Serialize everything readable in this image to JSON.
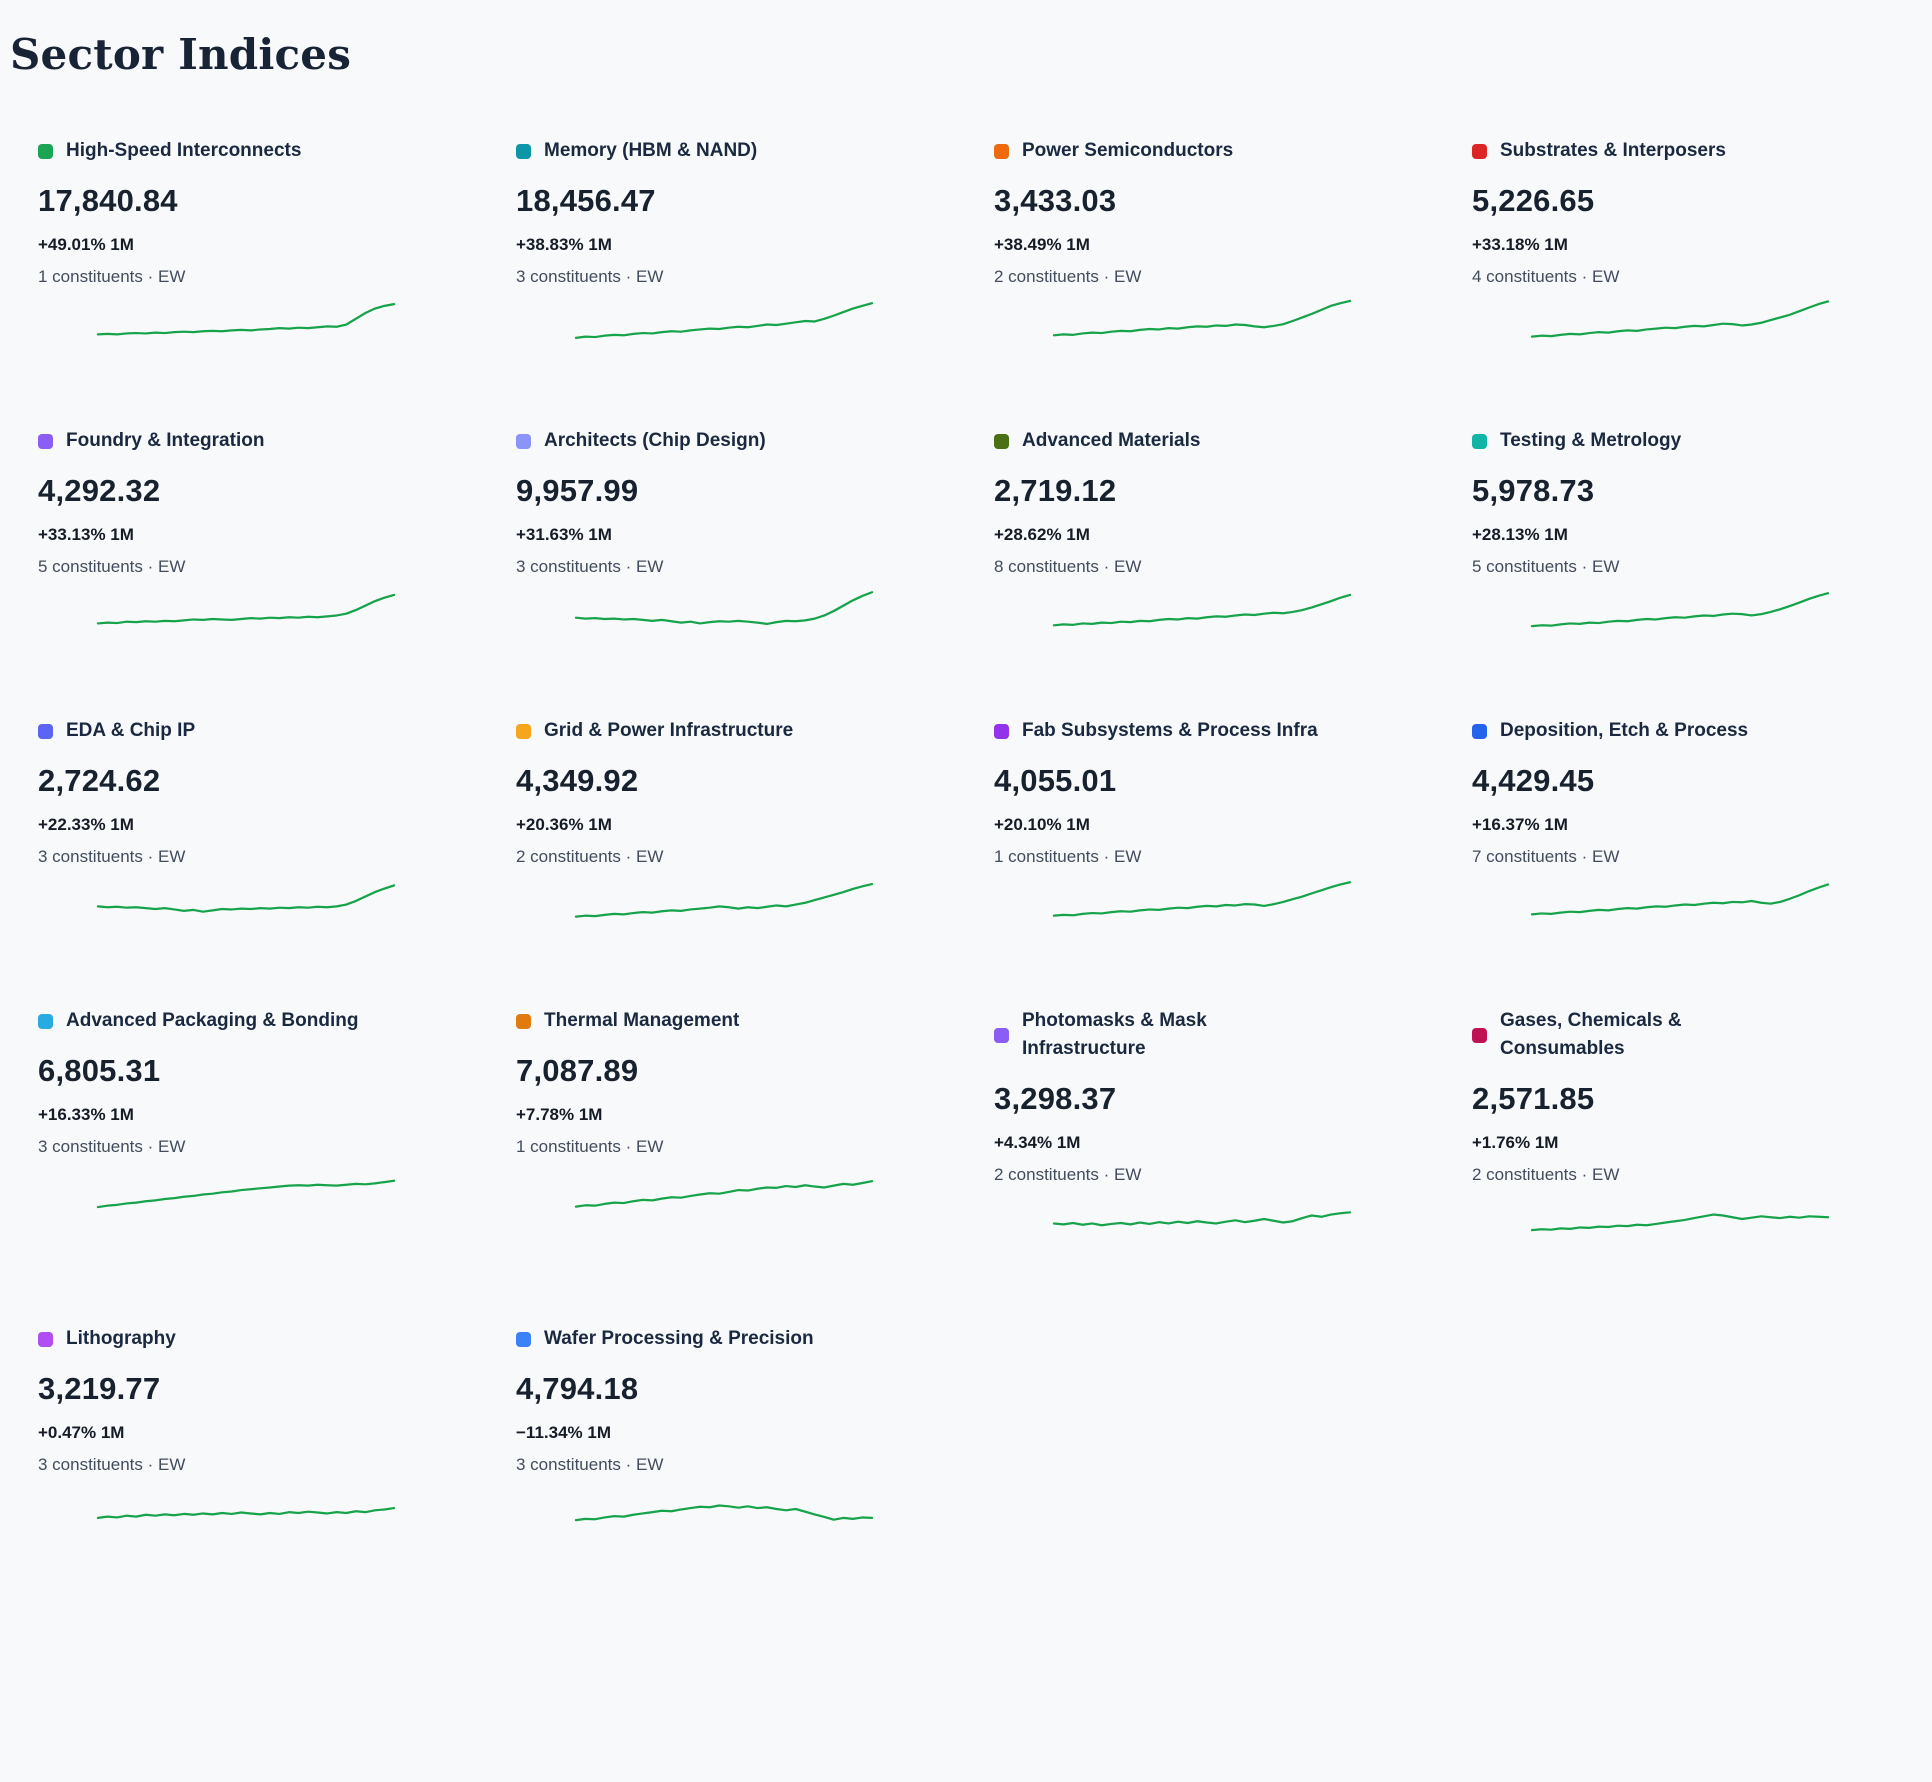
{
  "page": {
    "title": "Sector Indices",
    "background_color": "#f8f9fa",
    "sparkline_color": "#16a34a"
  },
  "cards": [
    {
      "name": "High-Speed Interconnects",
      "dot_color": "#1ba553",
      "value": "17,840.84",
      "change": "+49.01% 1M",
      "constituents": "1 constituents · EW",
      "sparkline": [
        20,
        21,
        20,
        22,
        23,
        22,
        24,
        23,
        25,
        26,
        25,
        27,
        28,
        27,
        29,
        30,
        29,
        31,
        32,
        34,
        33,
        35,
        34,
        36,
        38,
        37,
        42,
        55,
        68,
        78,
        84,
        88
      ]
    },
    {
      "name": "Memory (HBM & NAND)",
      "dot_color": "#0d95a8",
      "value": "18,456.47",
      "change": "+38.83% 1M",
      "constituents": "3 constituents · EW",
      "sparkline": [
        12,
        15,
        14,
        17,
        19,
        18,
        21,
        23,
        22,
        25,
        27,
        26,
        29,
        31,
        33,
        32,
        35,
        37,
        36,
        39,
        42,
        41,
        44,
        47,
        50,
        49,
        55,
        62,
        70,
        78,
        84,
        90
      ]
    },
    {
      "name": "Power Semiconductors",
      "dot_color": "#ee6a0e",
      "value": "3,433.03",
      "change": "+38.49% 1M",
      "constituents": "2 constituents · EW",
      "sparkline": [
        18,
        20,
        19,
        22,
        24,
        23,
        26,
        28,
        27,
        30,
        32,
        31,
        34,
        33,
        36,
        38,
        37,
        40,
        39,
        42,
        41,
        38,
        36,
        39,
        43,
        50,
        58,
        66,
        75,
        84,
        90,
        95
      ]
    },
    {
      "name": "Substrates & Interposers",
      "dot_color": "#dc2626",
      "value": "5,226.65",
      "change": "+33.18% 1M",
      "constituents": "4 constituents · EW",
      "sparkline": [
        15,
        17,
        16,
        19,
        21,
        20,
        23,
        25,
        24,
        27,
        29,
        28,
        31,
        33,
        35,
        34,
        37,
        39,
        38,
        41,
        44,
        43,
        40,
        42,
        46,
        52,
        58,
        64,
        72,
        80,
        88,
        94
      ]
    },
    {
      "name": "Foundry & Integration",
      "dot_color": "#8b5cf6",
      "value": "4,292.32",
      "change": "+33.13% 1M",
      "constituents": "5 constituents · EW",
      "sparkline": [
        22,
        24,
        23,
        26,
        25,
        27,
        26,
        28,
        27,
        29,
        31,
        30,
        32,
        31,
        30,
        32,
        34,
        33,
        35,
        34,
        36,
        35,
        37,
        36,
        38,
        40,
        44,
        52,
        62,
        72,
        80,
        86
      ]
    },
    {
      "name": "Architects (Chip Design)",
      "dot_color": "#8b94f8",
      "value": "9,957.99",
      "change": "+31.63% 1M",
      "constituents": "3 constituents · EW",
      "sparkline": [
        35,
        33,
        34,
        32,
        33,
        31,
        32,
        30,
        28,
        30,
        27,
        24,
        26,
        22,
        25,
        27,
        26,
        28,
        26,
        24,
        21,
        25,
        28,
        27,
        29,
        33,
        40,
        50,
        62,
        74,
        84,
        92
      ]
    },
    {
      "name": "Advanced Materials",
      "dot_color": "#4a7113",
      "value": "2,719.12",
      "change": "+28.62% 1M",
      "constituents": "8 constituents · EW",
      "sparkline": [
        18,
        20,
        19,
        22,
        21,
        24,
        23,
        26,
        25,
        28,
        27,
        30,
        32,
        31,
        34,
        33,
        36,
        38,
        37,
        40,
        42,
        41,
        44,
        46,
        45,
        48,
        52,
        58,
        65,
        72,
        80,
        86
      ]
    },
    {
      "name": "Testing & Metrology",
      "dot_color": "#12b5a5",
      "value": "5,978.73",
      "change": "+28.13% 1M",
      "constituents": "5 constituents · EW",
      "sparkline": [
        16,
        18,
        17,
        20,
        22,
        21,
        24,
        23,
        26,
        28,
        27,
        30,
        32,
        31,
        34,
        36,
        35,
        38,
        40,
        39,
        42,
        44,
        43,
        40,
        43,
        48,
        54,
        61,
        69,
        77,
        84,
        90
      ]
    },
    {
      "name": "EDA & Chip IP",
      "dot_color": "#5b64f4",
      "value": "2,724.62",
      "change": "+22.33% 1M",
      "constituents": "3 constituents · EW",
      "sparkline": [
        38,
        36,
        37,
        35,
        36,
        34,
        32,
        34,
        31,
        28,
        30,
        26,
        29,
        32,
        31,
        33,
        32,
        34,
        33,
        35,
        34,
        36,
        35,
        37,
        36,
        38,
        42,
        50,
        60,
        70,
        78,
        85
      ]
    },
    {
      "name": "Grid & Power Infrastructure",
      "dot_color": "#f5a61c",
      "value": "4,349.92",
      "change": "+20.36% 1M",
      "constituents": "2 constituents · EW",
      "sparkline": [
        15,
        17,
        16,
        19,
        21,
        20,
        23,
        25,
        24,
        27,
        29,
        28,
        31,
        33,
        35,
        38,
        36,
        33,
        36,
        34,
        37,
        40,
        38,
        42,
        46,
        52,
        58,
        64,
        70,
        77,
        83,
        88
      ]
    },
    {
      "name": "Fab Subsystems & Process Infra",
      "dot_color": "#9333ea",
      "value": "4,055.01",
      "change": "+20.10% 1M",
      "constituents": "1 constituents · EW",
      "sparkline": [
        17,
        19,
        18,
        21,
        23,
        22,
        25,
        27,
        26,
        29,
        31,
        30,
        33,
        35,
        34,
        37,
        39,
        38,
        41,
        40,
        43,
        42,
        39,
        43,
        48,
        54,
        60,
        67,
        74,
        81,
        87,
        92
      ]
    },
    {
      "name": "Deposition, Etch & Process",
      "dot_color": "#2563eb",
      "value": "4,429.45",
      "change": "+16.37% 1M",
      "constituents": "7 constituents · EW",
      "sparkline": [
        20,
        22,
        21,
        24,
        26,
        25,
        28,
        30,
        29,
        32,
        34,
        33,
        36,
        38,
        37,
        40,
        42,
        41,
        44,
        46,
        45,
        48,
        47,
        50,
        46,
        44,
        48,
        55,
        63,
        72,
        80,
        87
      ]
    },
    {
      "name": "Advanced Packaging & Bonding",
      "dot_color": "#29aae3",
      "value": "6,805.31",
      "change": "+16.33% 1M",
      "constituents": "3 constituents · EW",
      "sparkline": [
        14,
        17,
        19,
        22,
        24,
        27,
        29,
        32,
        34,
        37,
        39,
        42,
        44,
        47,
        49,
        52,
        54,
        56,
        58,
        60,
        62,
        63,
        62,
        64,
        63,
        62,
        64,
        66,
        65,
        67,
        70,
        73
      ]
    },
    {
      "name": "Thermal Management",
      "dot_color": "#e07c0f",
      "value": "7,087.89",
      "change": "+7.78% 1M",
      "constituents": "1 constituents · EW",
      "sparkline": [
        15,
        18,
        17,
        21,
        24,
        23,
        27,
        30,
        29,
        33,
        36,
        35,
        39,
        42,
        45,
        44,
        48,
        52,
        51,
        55,
        58,
        57,
        61,
        59,
        63,
        60,
        58,
        62,
        66,
        64,
        68,
        72
      ]
    },
    {
      "name": "Photomasks & Mask Infrastructure",
      "dot_color": "#8b5cf6",
      "value": "3,298.37",
      "change": "+4.34% 1M",
      "constituents": "2 constituents · EW",
      "sparkline": [
        40,
        38,
        41,
        37,
        40,
        36,
        39,
        41,
        38,
        42,
        39,
        43,
        40,
        44,
        41,
        45,
        42,
        40,
        44,
        47,
        43,
        46,
        50,
        46,
        42,
        45,
        52,
        58,
        55,
        60,
        63,
        65
      ]
    },
    {
      "name": "Gases, Chemicals & Consumables",
      "dot_color": "#be1254",
      "value": "2,571.85",
      "change": "+1.76% 1M",
      "constituents": "2 constituents · EW",
      "sparkline": [
        25,
        27,
        26,
        29,
        28,
        31,
        30,
        33,
        32,
        35,
        34,
        37,
        36,
        39,
        42,
        45,
        48,
        52,
        56,
        60,
        58,
        54,
        50,
        53,
        56,
        54,
        52,
        55,
        53,
        56,
        55,
        54
      ]
    },
    {
      "name": "Lithography",
      "dot_color": "#b14ef2",
      "value": "3,219.77",
      "change": "+0.47% 1M",
      "constituents": "3 constituents · EW",
      "sparkline": [
        30,
        33,
        31,
        35,
        33,
        37,
        35,
        38,
        36,
        39,
        37,
        40,
        38,
        41,
        39,
        42,
        40,
        38,
        41,
        39,
        43,
        41,
        44,
        42,
        40,
        43,
        41,
        45,
        43,
        47,
        49,
        52
      ]
    },
    {
      "name": "Wafer Processing & Precision",
      "dot_color": "#3b82f6",
      "value": "4,794.18",
      "change": "−11.34% 1M",
      "constituents": "3 constituents · EW",
      "sparkline": [
        25,
        28,
        27,
        31,
        34,
        33,
        37,
        40,
        43,
        46,
        45,
        49,
        52,
        55,
        54,
        58,
        56,
        53,
        56,
        52,
        54,
        50,
        47,
        50,
        44,
        38,
        32,
        26,
        30,
        28,
        31,
        30
      ]
    }
  ]
}
